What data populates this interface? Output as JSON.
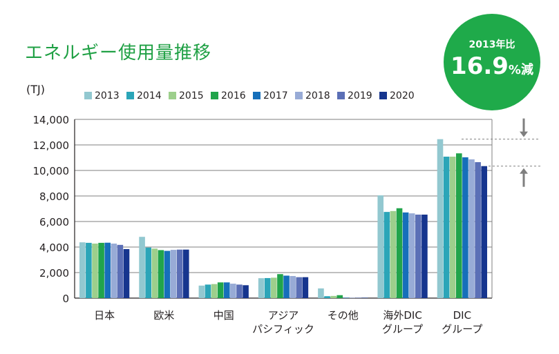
{
  "title": "エネルギー使用量推移",
  "unit": "(TJ)",
  "badge": {
    "top": "2013年比",
    "value": "16.9",
    "suffix": "%減"
  },
  "colors": {
    "title": "#1fa044",
    "badge": "#1faa4a",
    "grid": "#7f7f7f",
    "arrow": "#7f7f7f"
  },
  "chart_data": {
    "type": "bar",
    "ylim": [
      0,
      14000
    ],
    "yticks": [
      "0",
      "2,000",
      "4,000",
      "6,000",
      "8,000",
      "10,000",
      "12,000",
      "14,000"
    ],
    "yticks_values": [
      0,
      2000,
      4000,
      6000,
      8000,
      10000,
      12000,
      14000
    ],
    "grid": true,
    "legend_position": "top",
    "categories": [
      [
        "日本"
      ],
      [
        "欧米"
      ],
      [
        "中国"
      ],
      [
        "アジア",
        "パシフィック"
      ],
      [
        "その他"
      ],
      [
        "海外DIC",
        "グループ"
      ],
      [
        "DIC",
        "グループ"
      ]
    ],
    "series": [
      {
        "name": "2013",
        "color": "#92c8d0",
        "values": [
          4370,
          4800,
          980,
          1560,
          760,
          8050,
          12450
        ]
      },
      {
        "name": "2014",
        "color": "#2ba5b8",
        "values": [
          4330,
          3960,
          1060,
          1570,
          150,
          6750,
          11080
        ]
      },
      {
        "name": "2015",
        "color": "#9dcf8c",
        "values": [
          4270,
          3880,
          1100,
          1600,
          170,
          6820,
          11080
        ]
      },
      {
        "name": "2016",
        "color": "#21a44b",
        "values": [
          4330,
          3760,
          1230,
          1880,
          230,
          7040,
          11340
        ]
      },
      {
        "name": "2017",
        "color": "#166fba",
        "values": [
          4340,
          3700,
          1230,
          1760,
          30,
          6710,
          11030
        ]
      },
      {
        "name": "2018",
        "color": "#98abd6",
        "values": [
          4270,
          3780,
          1130,
          1730,
          30,
          6640,
          10870
        ]
      },
      {
        "name": "2019",
        "color": "#5b6fb6",
        "values": [
          4170,
          3800,
          1060,
          1640,
          30,
          6540,
          10650
        ]
      },
      {
        "name": "2020",
        "color": "#16358e",
        "values": [
          3840,
          3800,
          1010,
          1640,
          30,
          6540,
          10340
        ]
      }
    ],
    "annotation": {
      "type": "reduction-arrows",
      "from": 12450,
      "to": 10340
    }
  }
}
